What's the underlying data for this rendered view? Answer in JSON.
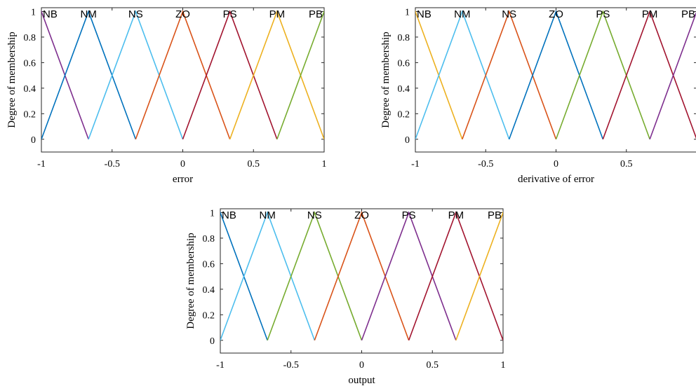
{
  "chart_data": [
    {
      "type": "line",
      "xlabel": "error",
      "ylabel": "Degree of membership",
      "xlim": [
        -1,
        1
      ],
      "ylim": [
        -0.1,
        1.03
      ],
      "xticks": [
        "-1",
        "-0.5",
        "0",
        "0.5",
        "1"
      ],
      "yticks": [
        "0",
        "0.2",
        "0.4",
        "0.6",
        "0.8",
        "1"
      ],
      "series": [
        {
          "name": "NB",
          "color": "#7E2F8E",
          "x": [
            -1.3333,
            -1,
            -0.6667
          ],
          "y": [
            0,
            1,
            0
          ]
        },
        {
          "name": "NM",
          "color": "#0072BD",
          "x": [
            -1,
            -0.6667,
            -0.3333
          ],
          "y": [
            0,
            1,
            0
          ]
        },
        {
          "name": "NS",
          "color": "#4DBEEE",
          "x": [
            -0.6667,
            -0.3333,
            0
          ],
          "y": [
            0,
            1,
            0
          ]
        },
        {
          "name": "ZO",
          "color": "#D95319",
          "x": [
            -0.3333,
            0,
            0.3333
          ],
          "y": [
            0,
            1,
            0
          ]
        },
        {
          "name": "PS",
          "color": "#A2142F",
          "x": [
            0,
            0.3333,
            0.6667
          ],
          "y": [
            0,
            1,
            0
          ]
        },
        {
          "name": "PM",
          "color": "#EDB120",
          "x": [
            0.3333,
            0.6667,
            1
          ],
          "y": [
            0,
            1,
            0
          ]
        },
        {
          "name": "PB",
          "color": "#77AC30",
          "x": [
            0.6667,
            1,
            1.3333
          ],
          "y": [
            0,
            1,
            0
          ]
        }
      ]
    },
    {
      "type": "line",
      "xlabel": "derivative of error",
      "ylabel": "Degree of membership",
      "xlim": [
        -1,
        1
      ],
      "ylim": [
        -0.1,
        1.03
      ],
      "xticks": [
        "-1",
        "-0.5",
        "0",
        "0.5"
      ],
      "yticks": [
        "0",
        "0.2",
        "0.4",
        "0.6",
        "0.8",
        "1"
      ],
      "series": [
        {
          "name": "NB",
          "color": "#EDB120",
          "x": [
            -1.3333,
            -1,
            -0.6667
          ],
          "y": [
            0,
            1,
            0
          ]
        },
        {
          "name": "NM",
          "color": "#4DBEEE",
          "x": [
            -1,
            -0.6667,
            -0.3333
          ],
          "y": [
            0,
            1,
            0
          ]
        },
        {
          "name": "NS",
          "color": "#D95319",
          "x": [
            -0.6667,
            -0.3333,
            0
          ],
          "y": [
            0,
            1,
            0
          ]
        },
        {
          "name": "ZO",
          "color": "#0072BD",
          "x": [
            -0.3333,
            0,
            0.3333
          ],
          "y": [
            0,
            1,
            0
          ]
        },
        {
          "name": "PS",
          "color": "#77AC30",
          "x": [
            0,
            0.3333,
            0.6667
          ],
          "y": [
            0,
            1,
            0
          ]
        },
        {
          "name": "PM",
          "color": "#A2142F",
          "x": [
            0.3333,
            0.6667,
            1
          ],
          "y": [
            0,
            1,
            0
          ]
        },
        {
          "name": "PB",
          "color": "#7E2F8E",
          "x": [
            0.6667,
            1,
            1.3333
          ],
          "y": [
            0,
            1,
            0
          ]
        }
      ]
    },
    {
      "type": "line",
      "xlabel": "output",
      "ylabel": "Degree of membership",
      "xlim": [
        -1,
        1
      ],
      "ylim": [
        -0.1,
        1.03
      ],
      "xticks": [
        "-1",
        "-0.5",
        "0",
        "0.5",
        "1"
      ],
      "yticks": [
        "0",
        "0.2",
        "0.4",
        "0.6",
        "0.8",
        "1"
      ],
      "series": [
        {
          "name": "NB",
          "color": "#0072BD",
          "x": [
            -1.3333,
            -1,
            -0.6667
          ],
          "y": [
            0,
            1,
            0
          ]
        },
        {
          "name": "NM",
          "color": "#4DBEEE",
          "x": [
            -1,
            -0.6667,
            -0.3333
          ],
          "y": [
            0,
            1,
            0
          ]
        },
        {
          "name": "NS",
          "color": "#77AC30",
          "x": [
            -0.6667,
            -0.3333,
            0
          ],
          "y": [
            0,
            1,
            0
          ]
        },
        {
          "name": "ZO",
          "color": "#D95319",
          "x": [
            -0.3333,
            0,
            0.3333
          ],
          "y": [
            0,
            1,
            0
          ]
        },
        {
          "name": "PS",
          "color": "#7E2F8E",
          "x": [
            0,
            0.3333,
            0.6667
          ],
          "y": [
            0,
            1,
            0
          ]
        },
        {
          "name": "PM",
          "color": "#A2142F",
          "x": [
            0.3333,
            0.6667,
            1
          ],
          "y": [
            0,
            1,
            0
          ]
        },
        {
          "name": "PB",
          "color": "#EDB120",
          "x": [
            0.6667,
            1,
            1.3333
          ],
          "y": [
            0,
            1,
            0
          ]
        }
      ]
    }
  ]
}
